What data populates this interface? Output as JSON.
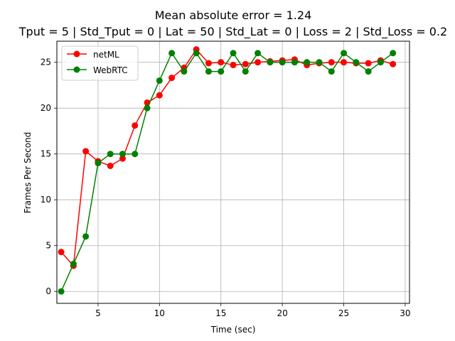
{
  "chart_data": {
    "type": "line",
    "title": "Mean absolute error = 1.24",
    "subtitle": "Tput = 5 | Std_Tput = 0 | Lat = 50 | Std_Lat = 0 | Loss = 2 | Std_Loss = 0.2",
    "xlabel": "Time (sec)",
    "ylabel": "Frames Per Second",
    "xlim": [
      1.65,
      30.35
    ],
    "ylim": [
      -1.3,
      27.3
    ],
    "xticks": [
      5,
      10,
      15,
      20,
      25,
      30
    ],
    "yticks": [
      0,
      5,
      10,
      15,
      20,
      25
    ],
    "grid": true,
    "legend_position": "top-left",
    "x": [
      2,
      3,
      4,
      5,
      6,
      7,
      8,
      9,
      10,
      11,
      12,
      13,
      14,
      15,
      16,
      17,
      18,
      19,
      20,
      21,
      22,
      23,
      24,
      25,
      26,
      27,
      28,
      29
    ],
    "series": [
      {
        "name": "netML",
        "color": "#ff0000",
        "values": [
          4.3,
          2.8,
          15.3,
          14.2,
          13.7,
          14.5,
          18.1,
          20.6,
          21.4,
          23.3,
          24.4,
          26.4,
          24.9,
          25.0,
          24.7,
          24.8,
          25.0,
          25.1,
          25.2,
          25.3,
          24.7,
          24.9,
          25.0,
          25.0,
          24.9,
          24.9,
          25.2,
          24.8
        ]
      },
      {
        "name": "WebRTC",
        "color": "#008000",
        "values": [
          0,
          3,
          6,
          14,
          15,
          15,
          15,
          20,
          23,
          26,
          24,
          26,
          24,
          24,
          26,
          24,
          26,
          25,
          25,
          25,
          25,
          25,
          24,
          26,
          25,
          24,
          25,
          26
        ]
      }
    ]
  }
}
